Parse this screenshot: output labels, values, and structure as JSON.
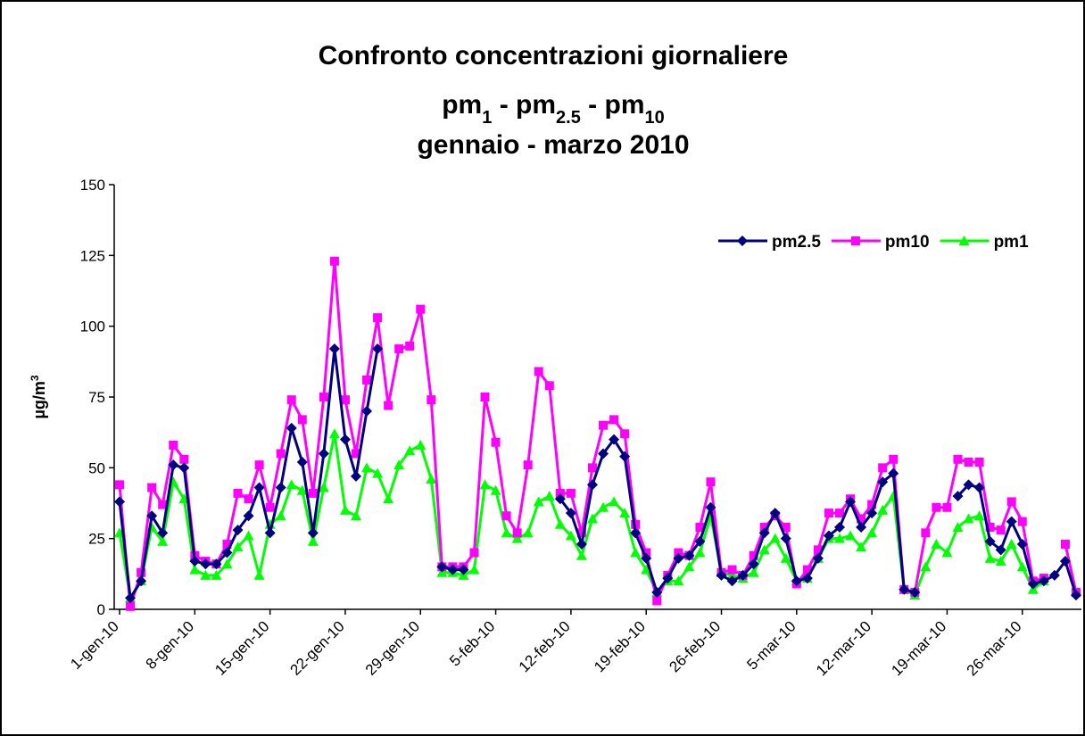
{
  "chart_data": {
    "type": "line",
    "title": "Confronto concentrazioni giornaliere",
    "subtitle": [
      "pm",
      "1",
      " - pm",
      "2.5",
      " - pm",
      "10"
    ],
    "subtitle2": "gennaio - marzo 2010",
    "ylabel": [
      "µg/m",
      "3"
    ],
    "categories": [
      "1-gen-10",
      null,
      null,
      null,
      null,
      null,
      null,
      "8-gen-10",
      null,
      null,
      null,
      null,
      null,
      null,
      "15-gen-10",
      null,
      null,
      null,
      null,
      null,
      null,
      "22-gen-10",
      null,
      null,
      null,
      null,
      null,
      null,
      "29-gen-10",
      null,
      null,
      null,
      null,
      null,
      null,
      "5-feb-10",
      null,
      null,
      null,
      null,
      null,
      null,
      "12-feb-10",
      null,
      null,
      null,
      null,
      null,
      null,
      "19-feb-10",
      null,
      null,
      null,
      null,
      null,
      null,
      "26-feb-10",
      null,
      null,
      null,
      null,
      null,
      null,
      "5-mar-10",
      null,
      null,
      null,
      null,
      null,
      null,
      "12-mar-10",
      null,
      null,
      null,
      null,
      null,
      null,
      "19-mar-10",
      null,
      null,
      null,
      null,
      null,
      null,
      "26-mar-10",
      null,
      null,
      null,
      null,
      null
    ],
    "series": [
      {
        "name": "pm2.5",
        "color": "#000080",
        "marker": "diamond",
        "values": [
          38,
          4,
          10,
          33,
          27,
          51,
          50,
          17,
          16,
          16,
          20,
          28,
          33,
          43,
          27,
          43,
          64,
          52,
          27,
          55,
          92,
          60,
          47,
          70,
          92,
          null,
          null,
          null,
          null,
          null,
          15,
          14,
          14,
          null,
          null,
          null,
          null,
          null,
          null,
          null,
          null,
          39,
          34,
          23,
          44,
          55,
          60,
          54,
          27,
          18,
          6,
          11,
          18,
          19,
          24,
          36,
          12,
          10,
          12,
          16,
          27,
          34,
          25,
          10,
          11,
          18,
          26,
          29,
          38,
          29,
          34,
          45,
          48,
          7,
          6,
          null,
          null,
          null,
          40,
          44,
          43,
          24,
          21,
          31,
          23,
          9,
          10,
          12,
          17,
          5
        ]
      },
      {
        "name": "pm10",
        "color": "#ff00ff",
        "marker": "square",
        "values": [
          44,
          1,
          13,
          43,
          37,
          58,
          53,
          19,
          17,
          16,
          23,
          41,
          39,
          51,
          36,
          55,
          74,
          67,
          41,
          75,
          123,
          74,
          55,
          81,
          103,
          72,
          92,
          93,
          106,
          74,
          15,
          15,
          15,
          20,
          75,
          59,
          33,
          27,
          51,
          84,
          79,
          41,
          41,
          27,
          50,
          65,
          67,
          62,
          30,
          20,
          3,
          12,
          20,
          19,
          29,
          45,
          13,
          14,
          12,
          19,
          29,
          33,
          29,
          9,
          14,
          21,
          34,
          34,
          39,
          32,
          37,
          50,
          53,
          7,
          6,
          27,
          36,
          36,
          53,
          52,
          52,
          29,
          28,
          38,
          31,
          10,
          11,
          null,
          23,
          6
        ]
      },
      {
        "name": "pm1",
        "color": "#00ff00",
        "marker": "triangle",
        "values": [
          27,
          4,
          10,
          29,
          24,
          45,
          39,
          14,
          12,
          12,
          16,
          22,
          26,
          12,
          30,
          33,
          44,
          42,
          24,
          43,
          62,
          35,
          33,
          50,
          48,
          39,
          51,
          56,
          58,
          46,
          13,
          13,
          12,
          14,
          44,
          42,
          27,
          25,
          27,
          38,
          40,
          30,
          26,
          19,
          32,
          36,
          38,
          34,
          20,
          14,
          6,
          10,
          10,
          15,
          20,
          33,
          13,
          12,
          11,
          13,
          21,
          25,
          18,
          10,
          11,
          18,
          25,
          25,
          26,
          22,
          27,
          35,
          40,
          7,
          5,
          15,
          23,
          20,
          29,
          32,
          33,
          18,
          17,
          23,
          15,
          7,
          10,
          null,
          null,
          null
        ]
      }
    ],
    "ylim": [
      0,
      150
    ],
    "yticks": [
      0,
      25,
      50,
      75,
      100,
      125,
      150
    ],
    "legend": "top-right"
  }
}
